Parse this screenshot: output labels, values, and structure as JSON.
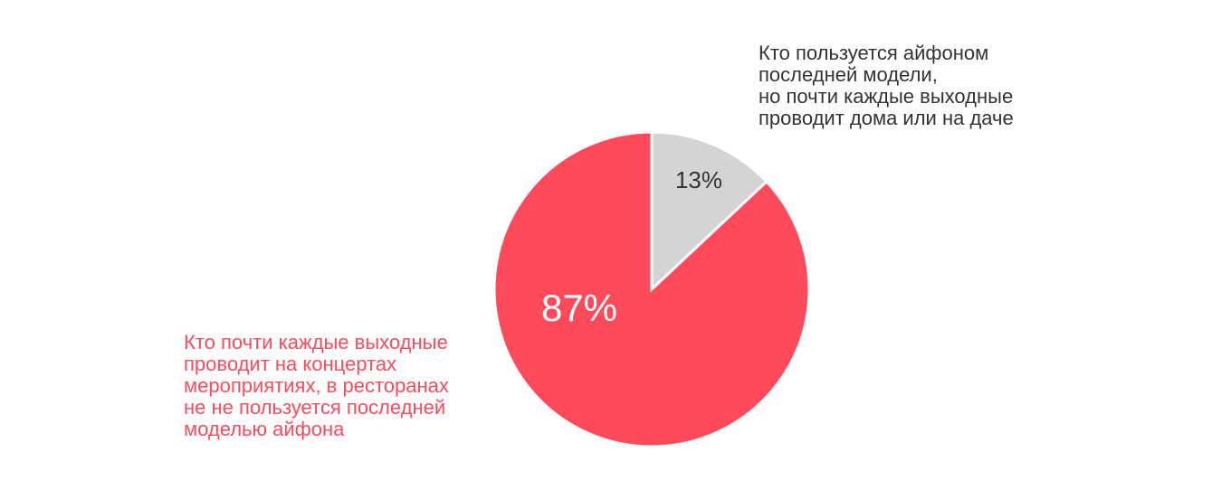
{
  "chart_data": {
    "type": "pie",
    "categories": [
      "Кто пользуется айфоном\nпоследней модели,\nно почти каждые выходные\nпроводит дома или на даче",
      "Кто почти каждые выходные\nпроводит на концертах\nмероприятиях, в ресторанах\nне не пользуется последней\nмоделью айфона"
    ],
    "values": [
      13,
      87
    ],
    "value_labels": [
      "13%",
      "87%"
    ],
    "colors": [
      "#d4d4d4",
      "#ff4a5c"
    ]
  }
}
